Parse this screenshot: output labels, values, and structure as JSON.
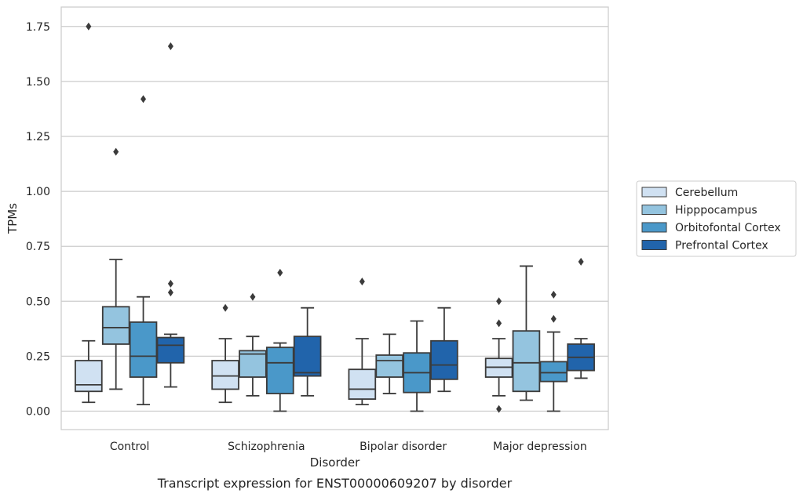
{
  "chart_data": {
    "type": "box",
    "title": "",
    "caption": "Transcript expression for ENST00000609207 by disorder",
    "xlabel": "Disorder",
    "ylabel": "TPMs",
    "ylim": [
      -0.08,
      1.84
    ],
    "yticks": [
      "0.00",
      "0.25",
      "0.50",
      "0.75",
      "1.00",
      "1.25",
      "1.50",
      "1.75"
    ],
    "grid": "horizontal",
    "legend_position": "right",
    "categories": [
      "Control",
      "Schizophrenia",
      "Bipolar disorder",
      "Major depression"
    ],
    "series": [
      {
        "name": "Cerebellum",
        "color": "#d0e1f2",
        "boxes": [
          {
            "min": 0.04,
            "q1": 0.09,
            "median": 0.12,
            "q3": 0.23,
            "max": 0.32,
            "outliers": [
              1.75
            ]
          },
          {
            "min": 0.04,
            "q1": 0.1,
            "median": 0.16,
            "q3": 0.23,
            "max": 0.33,
            "outliers": [
              0.47
            ]
          },
          {
            "min": 0.03,
            "q1": 0.055,
            "median": 0.1,
            "q3": 0.19,
            "max": 0.33,
            "outliers": [
              0.59
            ]
          },
          {
            "min": 0.07,
            "q1": 0.155,
            "median": 0.2,
            "q3": 0.24,
            "max": 0.33,
            "outliers": [
              0.5,
              0.4,
              0.01
            ]
          }
        ]
      },
      {
        "name": "Hipppocampus",
        "color": "#94c4df",
        "boxes": [
          {
            "min": 0.1,
            "q1": 0.305,
            "median": 0.38,
            "q3": 0.475,
            "max": 0.69,
            "outliers": [
              1.18
            ]
          },
          {
            "min": 0.07,
            "q1": 0.155,
            "median": 0.26,
            "q3": 0.275,
            "max": 0.34,
            "outliers": [
              0.52
            ]
          },
          {
            "min": 0.08,
            "q1": 0.155,
            "median": 0.23,
            "q3": 0.255,
            "max": 0.35,
            "outliers": []
          },
          {
            "min": 0.05,
            "q1": 0.09,
            "median": 0.22,
            "q3": 0.365,
            "max": 0.66,
            "outliers": []
          }
        ]
      },
      {
        "name": "Orbitofontal Cortex",
        "color": "#4a98c9",
        "boxes": [
          {
            "min": 0.03,
            "q1": 0.155,
            "median": 0.25,
            "q3": 0.405,
            "max": 0.52,
            "outliers": [
              1.42
            ]
          },
          {
            "min": 0.0,
            "q1": 0.08,
            "median": 0.22,
            "q3": 0.29,
            "max": 0.31,
            "outliers": [
              0.63
            ]
          },
          {
            "min": 0.0,
            "q1": 0.085,
            "median": 0.175,
            "q3": 0.265,
            "max": 0.41,
            "outliers": []
          },
          {
            "min": 0.0,
            "q1": 0.135,
            "median": 0.175,
            "q3": 0.225,
            "max": 0.36,
            "outliers": [
              0.53,
              0.42
            ]
          }
        ]
      },
      {
        "name": "Prefrontal Cortex",
        "color": "#2164ab",
        "boxes": [
          {
            "min": 0.11,
            "q1": 0.22,
            "median": 0.3,
            "q3": 0.335,
            "max": 0.35,
            "outliers": [
              1.66,
              0.58,
              0.54
            ]
          },
          {
            "min": 0.07,
            "q1": 0.16,
            "median": 0.175,
            "q3": 0.34,
            "max": 0.47,
            "outliers": []
          },
          {
            "min": 0.09,
            "q1": 0.145,
            "median": 0.21,
            "q3": 0.32,
            "max": 0.47,
            "outliers": []
          },
          {
            "min": 0.15,
            "q1": 0.185,
            "median": 0.245,
            "q3": 0.305,
            "max": 0.33,
            "outliers": [
              0.68
            ]
          }
        ]
      }
    ]
  }
}
